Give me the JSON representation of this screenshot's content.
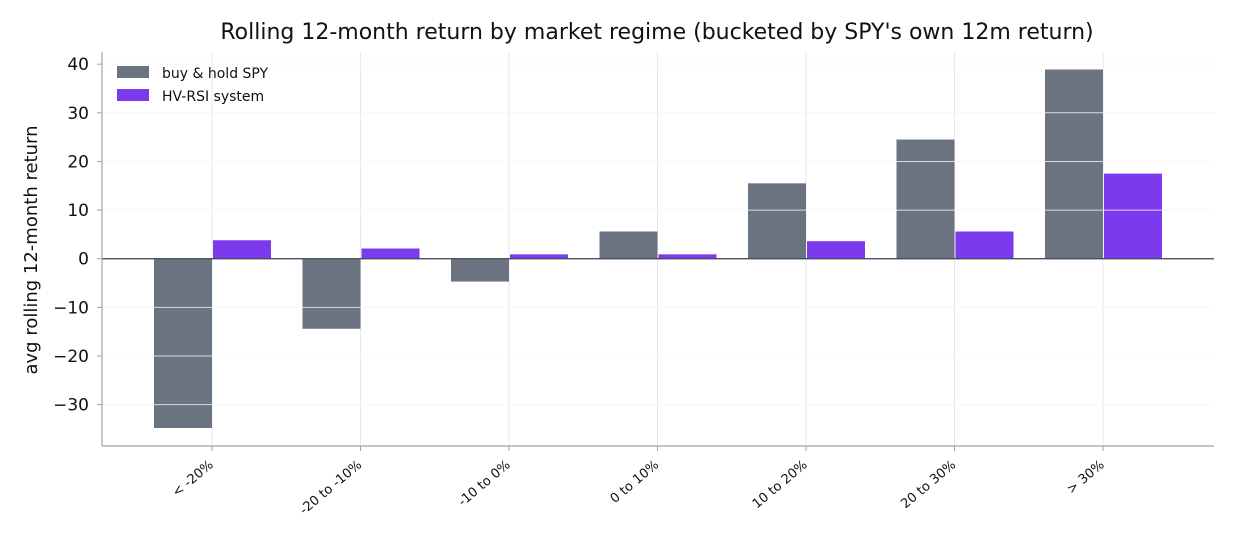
{
  "chart_data": {
    "type": "bar",
    "title": "Rolling 12-month return by market regime (bucketed by SPY's own 12m return)",
    "xlabel": "",
    "ylabel": "avg rolling 12-month return",
    "categories": [
      "< -20%",
      "-20 to -10%",
      "-10 to 0%",
      "0 to 10%",
      "10 to 20%",
      "20 to 30%",
      "> 30%"
    ],
    "series": [
      {
        "name": "buy & hold SPY",
        "color": "#6b7280",
        "values": [
          -34.8,
          -14.4,
          -4.7,
          5.6,
          15.5,
          24.5,
          38.9
        ]
      },
      {
        "name": "HV-RSI system",
        "color": "#7c3aed",
        "values": [
          3.8,
          2.1,
          0.9,
          0.9,
          3.6,
          5.6,
          17.5
        ]
      }
    ],
    "ylim": [
      -38.5,
      42.5
    ],
    "yticks": [
      40,
      30,
      20,
      10,
      0,
      -10,
      -20,
      -30
    ],
    "ytick_labels": [
      "40",
      "30",
      "20",
      "10",
      "0",
      "−10",
      "−20",
      "−30"
    ],
    "grid": true,
    "legend_position": "top-left"
  }
}
